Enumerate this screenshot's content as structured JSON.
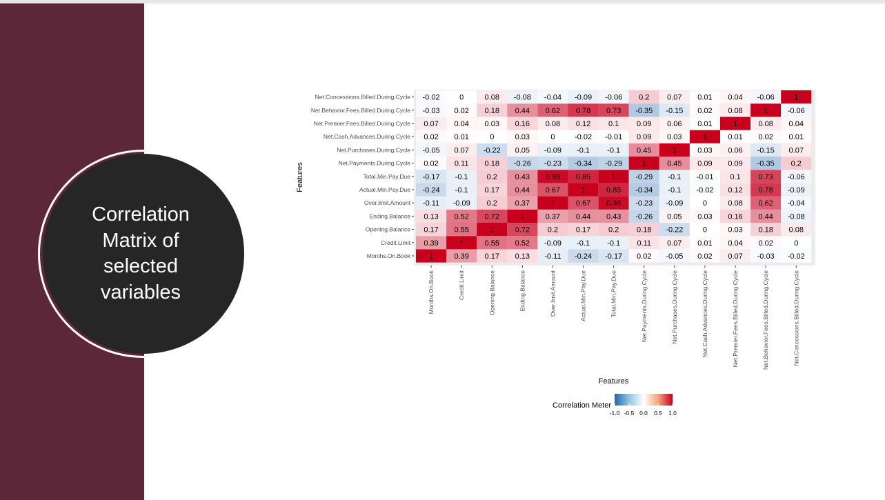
{
  "slide": {
    "title": "Correlation Matrix of selected variables"
  },
  "colors": {
    "sidebar": "#5c2739",
    "disc": "#262626",
    "negative": "#2166ac",
    "neutral": "#ffffff",
    "positive": "#c8001e",
    "panel": "#ebebeb"
  },
  "chart_data": {
    "type": "heatmap",
    "xlabel": "Features",
    "ylabel": "Features",
    "legend_title": "Correlation Meter",
    "legend_ticks": [
      "-1.0",
      "-0.5",
      "0.0",
      "0.5",
      "1.0"
    ],
    "value_range": [
      -1,
      1
    ],
    "legend_position": "bottom",
    "features": [
      "Months.On.Book",
      "Credit.Limit",
      "Opening.Balance",
      "Ending.Balance",
      "Over.limit.Amount",
      "Actual.Min.Pay.Due",
      "Total.Min.Pay.Due",
      "Net.Payments.During.Cycle",
      "Net.Purchases.During.Cycle",
      "Net.Cash.Advances.During.Cycle",
      "Net.Premier.Fees.Billed.During.Cycle",
      "Net.Behavior.Fees.Billed.During.Cycle",
      "Net.Concessions.Billed.During.Cycle"
    ],
    "matrix": [
      [
        "1",
        "0.39",
        "0.17",
        "0.13",
        "-0.11",
        "-0.24",
        "-0.17",
        "0.02",
        "-0.05",
        "0.02",
        "0.07",
        "-0.03",
        "-0.02"
      ],
      [
        "0.39",
        "1",
        "0.55",
        "0.52",
        "-0.09",
        "-0.1",
        "-0.1",
        "0.11",
        "0.07",
        "0.01",
        "0.04",
        "0.02",
        "0"
      ],
      [
        "0.17",
        "0.55",
        "1",
        "0.72",
        "0.2",
        "0.17",
        "0.2",
        "0.18",
        "-0.22",
        "0",
        "0.03",
        "0.18",
        "0.08"
      ],
      [
        "0.13",
        "0.52",
        "0.72",
        "1",
        "0.37",
        "0.44",
        "0.43",
        "-0.26",
        "0.05",
        "0.03",
        "0.16",
        "0.44",
        "-0.08"
      ],
      [
        "-0.11",
        "-0.09",
        "0.2",
        "0.37",
        "1",
        "0.67",
        "0.96",
        "-0.23",
        "-0.09",
        "0",
        "0.08",
        "0.62",
        "-0.04"
      ],
      [
        "-0.24",
        "-0.1",
        "0.17",
        "0.44",
        "0.67",
        "1",
        "0.85",
        "-0.34",
        "-0.1",
        "-0.02",
        "0.12",
        "0.78",
        "-0.09"
      ],
      [
        "-0.17",
        "-0.1",
        "0.2",
        "0.43",
        "0.96",
        "0.85",
        "1",
        "-0.29",
        "-0.1",
        "-0.01",
        "0.1",
        "0.73",
        "-0.06"
      ],
      [
        "0.02",
        "0.11",
        "0.18",
        "-0.26",
        "-0.23",
        "-0.34",
        "-0.29",
        "1",
        "0.45",
        "0.09",
        "0.09",
        "-0.35",
        "0.2"
      ],
      [
        "-0.05",
        "0.07",
        "-0.22",
        "0.05",
        "-0.09",
        "-0.1",
        "-0.1",
        "0.45",
        "1",
        "0.03",
        "0.06",
        "-0.15",
        "0.07"
      ],
      [
        "0.02",
        "0.01",
        "0",
        "0.03",
        "0",
        "-0.02",
        "-0.01",
        "0.09",
        "0.03",
        "1",
        "0.01",
        "0.02",
        "0.01"
      ],
      [
        "0.07",
        "0.04",
        "0.03",
        "0.16",
        "0.08",
        "0.12",
        "0.1",
        "0.09",
        "0.06",
        "0.01",
        "1",
        "0.08",
        "0.04"
      ],
      [
        "-0.03",
        "0.02",
        "0.18",
        "0.44",
        "0.62",
        "0.78",
        "0.73",
        "-0.35",
        "-0.15",
        "0.02",
        "0.08",
        "1",
        "-0.06"
      ],
      [
        "-0.02",
        "0",
        "0.08",
        "-0.08",
        "-0.04",
        "-0.09",
        "-0.06",
        "0.2",
        "0.07",
        "0.01",
        "0.04",
        "-0.06",
        "1"
      ]
    ]
  }
}
